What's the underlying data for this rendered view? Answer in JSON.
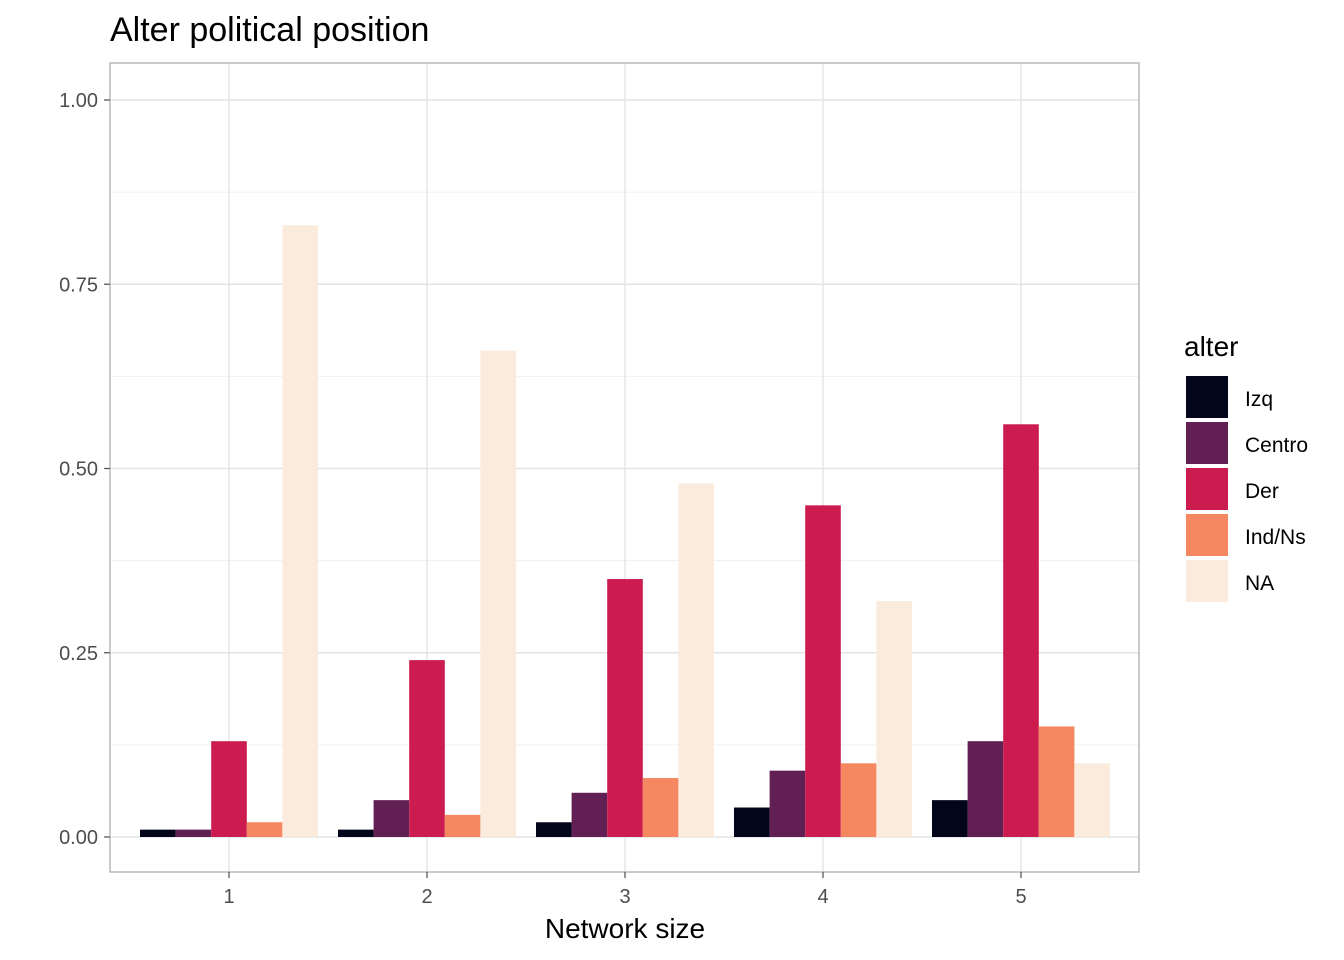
{
  "chart_data": {
    "type": "bar",
    "title": "Alter political position",
    "xlabel": "Network size",
    "ylabel": "",
    "categories": [
      "1",
      "2",
      "3",
      "4",
      "5"
    ],
    "ylim": [
      -0.05,
      1.05
    ],
    "yticks": [
      0.0,
      0.25,
      0.5,
      0.75,
      1.0
    ],
    "ytick_labels": [
      "0.00",
      "0.25",
      "0.50",
      "0.75",
      "1.00"
    ],
    "grid": true,
    "legend": {
      "title": "alter",
      "position": "right"
    },
    "series": [
      {
        "name": "Izq",
        "color": "#03051a",
        "values": [
          0.01,
          0.01,
          0.02,
          0.04,
          0.05
        ]
      },
      {
        "name": "Centro",
        "color": "#611f53",
        "values": [
          0.01,
          0.05,
          0.06,
          0.09,
          0.13
        ]
      },
      {
        "name": "Der",
        "color": "#cb1b4f",
        "values": [
          0.13,
          0.24,
          0.35,
          0.45,
          0.56
        ]
      },
      {
        "name": "Ind/Ns",
        "color": "#f58860",
        "values": [
          0.02,
          0.03,
          0.08,
          0.1,
          0.15
        ]
      },
      {
        "name": "NA",
        "color": "#faebdd",
        "values": [
          0.83,
          0.66,
          0.48,
          0.32,
          0.1
        ]
      }
    ]
  }
}
